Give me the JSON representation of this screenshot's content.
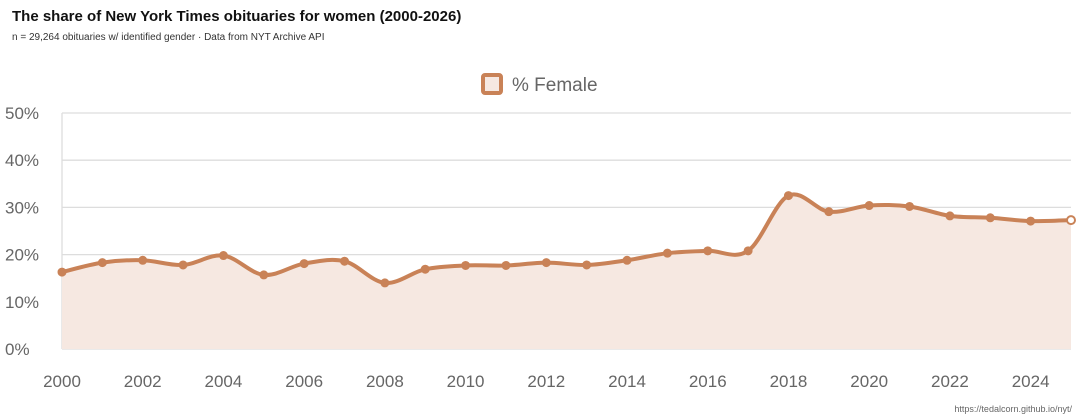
{
  "header": {
    "title": "The share of New York Times obituaries for women (2000-2026)",
    "subtitle": "n = 29,264 obituaries w/ identified gender · Data from NYT Archive API"
  },
  "footer": {
    "source": "https://tedalcorn.github.io/nyt/"
  },
  "colors": {
    "line": "#c98257",
    "fill": "#f6e8e1",
    "grid": "#dddddd",
    "tick_text": "#666666"
  },
  "chart_data": {
    "type": "area",
    "title": "",
    "xlabel": "",
    "ylabel": "",
    "legend_position": "top-center",
    "grid": true,
    "x": [
      2000,
      2001,
      2002,
      2003,
      2004,
      2005,
      2006,
      2007,
      2008,
      2009,
      2010,
      2011,
      2012,
      2013,
      2014,
      2015,
      2016,
      2017,
      2018,
      2019,
      2020,
      2021,
      2022,
      2023,
      2024,
      2025
    ],
    "xlim": [
      2000,
      2025
    ],
    "x_ticks": [
      "2000",
      "2002",
      "2004",
      "2006",
      "2008",
      "2010",
      "2012",
      "2014",
      "2016",
      "2018",
      "2020",
      "2022",
      "2024"
    ],
    "ylim": [
      0,
      50
    ],
    "y_ticks": [
      "0%",
      "10%",
      "20%",
      "30%",
      "40%",
      "50%"
    ],
    "series": [
      {
        "name": "% Female",
        "values": [
          16.3,
          18.3,
          18.8,
          17.8,
          19.8,
          15.7,
          18.1,
          18.6,
          14.0,
          16.9,
          17.7,
          17.7,
          18.3,
          17.8,
          18.8,
          20.3,
          20.8,
          20.8,
          32.5,
          29.1,
          30.4,
          30.2,
          28.2,
          27.8,
          27.1,
          27.3
        ]
      }
    ]
  }
}
